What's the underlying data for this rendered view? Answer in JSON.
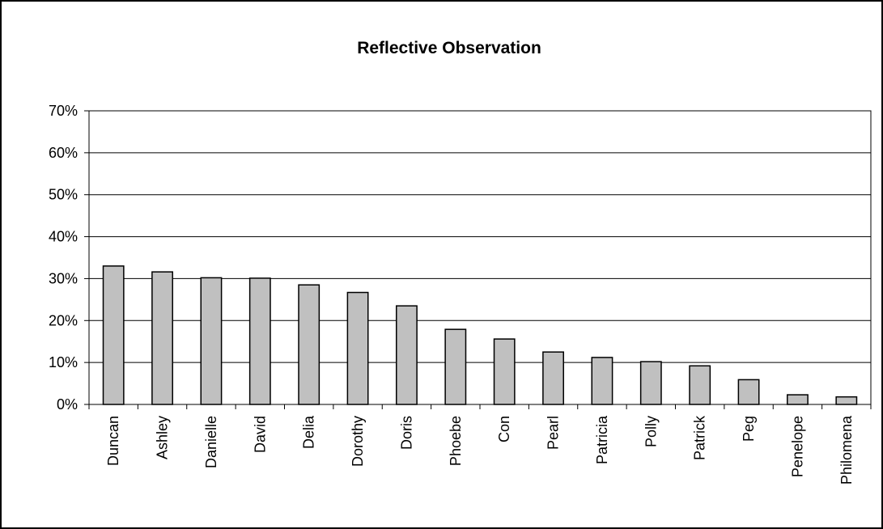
{
  "chart_data": {
    "type": "bar",
    "title": "Reflective Observation",
    "xlabel": "",
    "ylabel": "",
    "ylim": [
      0,
      70
    ],
    "y_tick_step": 10,
    "y_tick_format": "percent",
    "grid": true,
    "legend": "none",
    "categories": [
      "Duncan",
      "Ashley",
      "Danielle",
      "David",
      "Delia",
      "Dorothy",
      "Doris",
      "Phoebe",
      "Con",
      "Pearl",
      "Patricia",
      "Polly",
      "Patrick",
      "Peg",
      "Penelope",
      "Philomena"
    ],
    "values": [
      33.0,
      31.6,
      30.2,
      30.1,
      28.5,
      26.7,
      23.5,
      17.9,
      15.6,
      12.5,
      11.2,
      10.2,
      9.2,
      5.9,
      2.3,
      1.8
    ],
    "colors": {
      "bar_fill": "#c0c0c0",
      "bar_stroke": "#000000",
      "grid": "#000000",
      "frame": "#000000"
    }
  }
}
